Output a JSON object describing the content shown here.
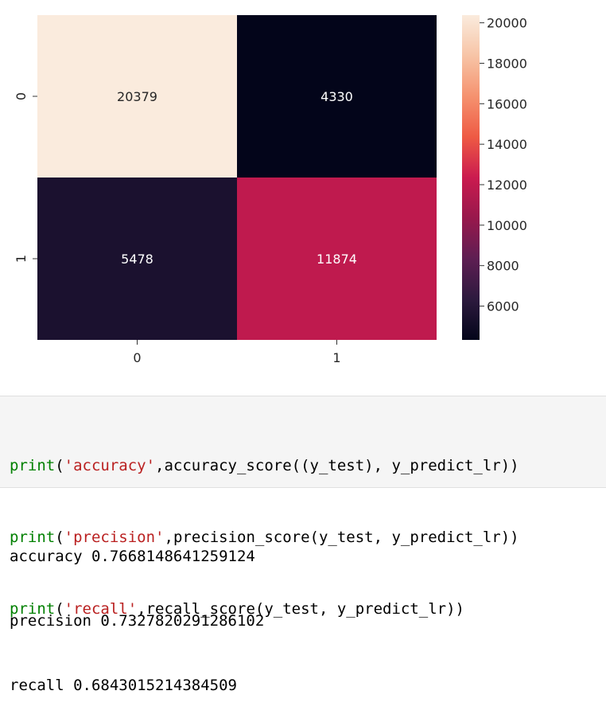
{
  "chart_data": {
    "type": "heatmap",
    "title": "",
    "xlabel": "",
    "ylabel": "",
    "x_categories": [
      "0",
      "1"
    ],
    "y_categories": [
      "0",
      "1"
    ],
    "values": [
      [
        20379,
        4330
      ],
      [
        5478,
        11874
      ]
    ],
    "annotations": [
      "20379",
      "4330",
      "5478",
      "11874"
    ],
    "colorbar": {
      "min": 4330,
      "max": 20379,
      "ticks": [
        6000,
        8000,
        10000,
        12000,
        14000,
        16000,
        18000,
        20000
      ],
      "tick_labels": [
        "6000",
        "8000",
        "10000",
        "12000",
        "14000",
        "16000",
        "18000",
        "20000"
      ],
      "colormap": [
        "#03051a",
        "#2d1a3e",
        "#5e1e53",
        "#98184c",
        "#cb1b4f",
        "#ee5a44",
        "#f5926f",
        "#f7c4a6",
        "#faebdd"
      ]
    }
  },
  "code": {
    "lines": [
      {
        "fn": "print",
        "open": "(",
        "str": "'accuracy'",
        "rest": ",accuracy_score((y_test), y_predict_lr))"
      },
      {
        "fn": "print",
        "open": "(",
        "str": "'precision'",
        "rest": ",precision_score(y_test, y_predict_lr))"
      },
      {
        "fn": "print",
        "open": "(",
        "str": "'recall'",
        "rest": ",recall_score(y_test, y_predict_lr))"
      }
    ]
  },
  "output": {
    "lines": [
      "accuracy 0.7668148641259124",
      "precision 0.7327820291286102",
      "recall 0.6843015214384509"
    ]
  }
}
